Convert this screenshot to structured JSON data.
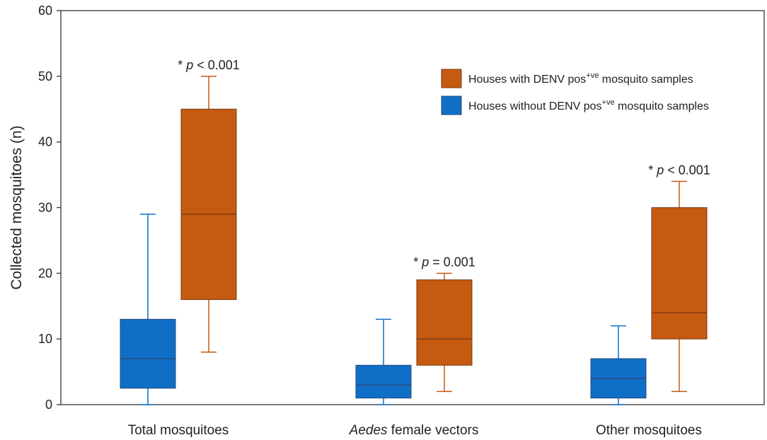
{
  "chart_data": {
    "type": "box",
    "ylabel": "Collected mosquitoes (n)",
    "ylim": [
      0,
      60
    ],
    "yticks": [
      0,
      10,
      20,
      30,
      40,
      50,
      60
    ],
    "grid": false,
    "legend_position": "top-right",
    "categories": [
      {
        "label": "Total mosquitoes"
      },
      {
        "label_italic": "Aedes",
        "label_rest": " female vectors"
      },
      {
        "label": "Other mosquitoes"
      }
    ],
    "series": [
      {
        "legend": {
          "pre": "Houses without DENV pos",
          "sup": "+ve",
          "post": " mosquito samples"
        },
        "color": "#0f6fc6",
        "median_color": "#2a4a7a",
        "boxes": [
          {
            "min": 0,
            "q1": 2.5,
            "median": 7,
            "q3": 13,
            "max": 29
          },
          {
            "min": 0,
            "q1": 1,
            "median": 3,
            "q3": 6,
            "max": 13
          },
          {
            "min": 0,
            "q1": 1,
            "median": 4,
            "q3": 7,
            "max": 12
          }
        ]
      },
      {
        "legend": {
          "pre": "Houses with DENV pos",
          "sup": "+ve",
          "post": " mosquito samples"
        },
        "color": "#c55a11",
        "median_color": "#7a3a14",
        "boxes": [
          {
            "min": 8,
            "q1": 16,
            "median": 29,
            "q3": 45,
            "max": 50
          },
          {
            "min": 2,
            "q1": 6,
            "median": 10,
            "q3": 19,
            "max": 20
          },
          {
            "min": 2,
            "q1": 10,
            "median": 14,
            "q3": 30,
            "max": 34
          }
        ]
      }
    ],
    "annotations": [
      {
        "star": "* ",
        "p": "p",
        "rest": " < 0.001",
        "category": 0
      },
      {
        "star": "* ",
        "p": "p",
        "rest": " = 0.001",
        "category": 1
      },
      {
        "star": "* ",
        "p": "p",
        "rest": " < 0.001",
        "category": 2
      }
    ]
  }
}
